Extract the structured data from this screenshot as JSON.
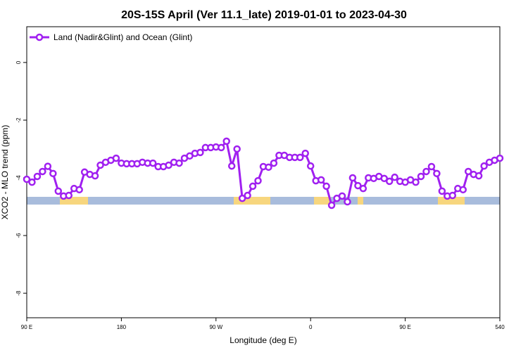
{
  "chart_data": {
    "type": "line",
    "title": "20S-15S April (Ver 11.1_late)   2019-01-01 to 2023-04-30",
    "x_label": "Longitude (deg E)",
    "y_label": "XCO2 - MLO trend (ppm)",
    "x": [
      90,
      95,
      100,
      105,
      110,
      115,
      120,
      125,
      130,
      135,
      140,
      145,
      150,
      155,
      160,
      165,
      170,
      175,
      180,
      185,
      190,
      195,
      200,
      205,
      210,
      215,
      220,
      225,
      230,
      235,
      240,
      245,
      250,
      255,
      260,
      265,
      270,
      275,
      280,
      285,
      290,
      295,
      300,
      305,
      310,
      315,
      320,
      325,
      330,
      335,
      340,
      345,
      350,
      355,
      360,
      365,
      370,
      375,
      380,
      385,
      390,
      395,
      400,
      405,
      410,
      415,
      420,
      425,
      430,
      435,
      440,
      445,
      450,
      455,
      460,
      465,
      470,
      475,
      480,
      485,
      490,
      495,
      500,
      505,
      510,
      515,
      520,
      525,
      530,
      535,
      540
    ],
    "series": [
      {
        "name": "Land (Nadir&Glint) and Ocean (Glint)",
        "color": "#a020f0",
        "values": [
          -4.05,
          -4.15,
          -3.95,
          -3.78,
          -3.6,
          -3.85,
          -4.46,
          -4.63,
          -4.61,
          -4.37,
          -4.41,
          -3.8,
          -3.88,
          -3.93,
          -3.56,
          -3.46,
          -3.39,
          -3.32,
          -3.49,
          -3.51,
          -3.51,
          -3.51,
          -3.46,
          -3.49,
          -3.49,
          -3.61,
          -3.61,
          -3.56,
          -3.46,
          -3.49,
          -3.32,
          -3.24,
          -3.15,
          -3.12,
          -2.95,
          -2.95,
          -2.93,
          -2.95,
          -2.73,
          -3.59,
          -3.0,
          -4.71,
          -4.61,
          -4.29,
          -4.1,
          -3.61,
          -3.63,
          -3.49,
          -3.22,
          -3.22,
          -3.29,
          -3.29,
          -3.29,
          -3.15,
          -3.59,
          -4.1,
          -4.07,
          -4.29,
          -4.95,
          -4.71,
          -4.63,
          -4.83,
          -4.0,
          -4.27,
          -4.37,
          -4.0,
          -4.02,
          -3.95,
          -4.02,
          -4.12,
          -3.98,
          -4.12,
          -4.15,
          -4.07,
          -4.15,
          -3.95,
          -3.78,
          -3.61,
          -3.85,
          -4.46,
          -4.63,
          -4.61,
          -4.37,
          -4.41,
          -3.78,
          -3.88,
          -3.93,
          -3.59,
          -3.46,
          -3.39,
          -3.32
        ]
      }
    ],
    "xlim": [
      90,
      540
    ],
    "xticks": [
      {
        "value": 90,
        "label": "90 E"
      },
      180,
      {
        "value": 270,
        "label": "90 W"
      },
      {
        "value": 360,
        "label": "0"
      },
      {
        "value": 450,
        "label": "90 E"
      },
      540
    ],
    "ylim": [
      -8.85,
      1.24
    ],
    "yticks": [
      0,
      -2,
      -4,
      -6,
      -8
    ],
    "legend": "top-left"
  }
}
